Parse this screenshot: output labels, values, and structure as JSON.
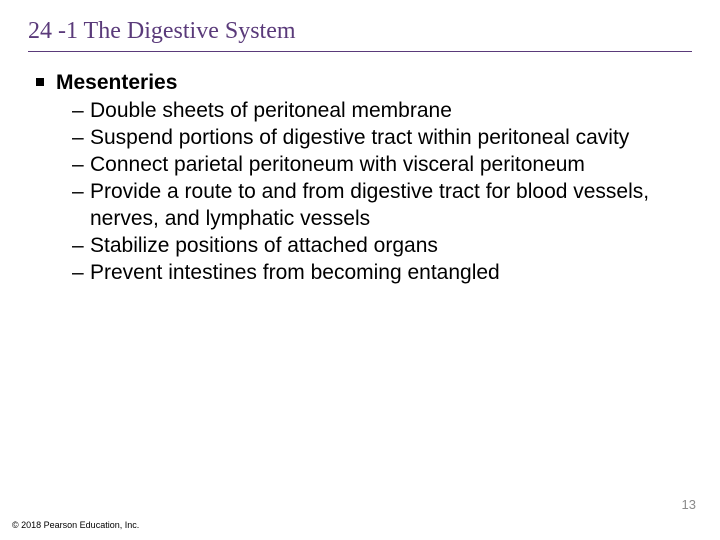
{
  "slide": {
    "title": "24 -1 The Digestive System",
    "title_color": "#5a3a7a",
    "rule_color": "#5a3a7a",
    "background_color": "#ffffff",
    "text_color": "#000000",
    "heading": "Mesenteries",
    "heading_fontsize": 21,
    "body_fontsize": 21,
    "sub_items": [
      "Double sheets of peritoneal membrane",
      "Suspend portions of digestive tract within peritoneal cavity",
      "Connect parietal peritoneum with visceral peritoneum",
      "Provide a route to and from digestive tract for blood vessels, nerves, and lymphatic vessels",
      "Stabilize positions of attached organs",
      "Prevent intestines from becoming entangled"
    ],
    "page_number": "13",
    "page_number_color": "#8a8a8a",
    "copyright": "© 2018 Pearson Education, Inc."
  }
}
